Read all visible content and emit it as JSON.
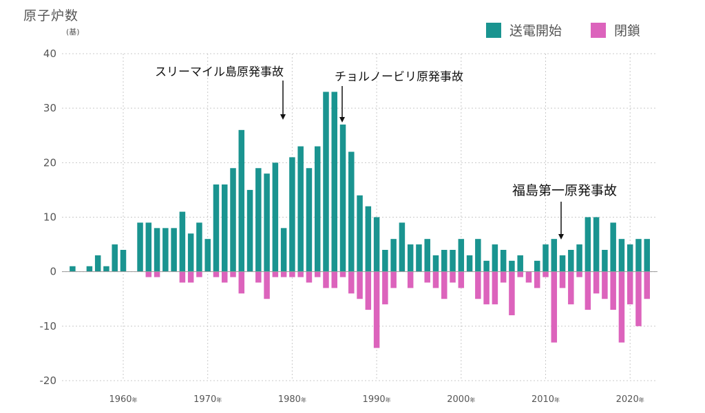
{
  "chart_data": {
    "type": "bar",
    "ylabel": "原子炉数",
    "yunit": "(基)",
    "ylim": [
      -20,
      40
    ],
    "yticks": [
      40,
      30,
      20,
      10,
      0,
      -10,
      -20
    ],
    "xticks": [
      {
        "year": 1960,
        "label": "1960",
        "suffix": "年"
      },
      {
        "year": 1970,
        "label": "1970",
        "suffix": "年"
      },
      {
        "year": 1980,
        "label": "1980",
        "suffix": "年"
      },
      {
        "year": 1990,
        "label": "1990",
        "suffix": "年"
      },
      {
        "year": 2000,
        "label": "2000",
        "suffix": "年"
      },
      {
        "year": 2010,
        "label": "2010",
        "suffix": "年"
      },
      {
        "year": 2020,
        "label": "2020",
        "suffix": "年"
      }
    ],
    "grid": true,
    "legend_position": "top-right",
    "x": [
      1954,
      1955,
      1956,
      1957,
      1958,
      1959,
      1960,
      1961,
      1962,
      1963,
      1964,
      1965,
      1966,
      1967,
      1968,
      1969,
      1970,
      1971,
      1972,
      1973,
      1974,
      1975,
      1976,
      1977,
      1978,
      1979,
      1980,
      1981,
      1982,
      1983,
      1984,
      1985,
      1986,
      1987,
      1988,
      1989,
      1990,
      1991,
      1992,
      1993,
      1994,
      1995,
      1996,
      1997,
      1998,
      1999,
      2000,
      2001,
      2002,
      2003,
      2004,
      2005,
      2006,
      2007,
      2008,
      2009,
      2010,
      2011,
      2012,
      2013,
      2014,
      2015,
      2016,
      2017,
      2018,
      2019,
      2020,
      2021,
      2022
    ],
    "series": [
      {
        "name": "送電開始",
        "color": "#1a9490",
        "values": [
          1,
          0,
          1,
          3,
          1,
          5,
          4,
          0,
          9,
          9,
          8,
          8,
          8,
          11,
          7,
          9,
          6,
          16,
          16,
          19,
          26,
          15,
          19,
          18,
          20,
          8,
          21,
          23,
          19,
          23,
          33,
          33,
          27,
          22,
          14,
          12,
          10,
          4,
          6,
          9,
          5,
          5,
          6,
          3,
          4,
          4,
          6,
          3,
          6,
          2,
          5,
          4,
          2,
          3,
          0,
          2,
          5,
          6,
          3,
          4,
          5,
          10,
          10,
          4,
          9,
          6,
          5,
          6,
          6
        ]
      },
      {
        "name": "閉鎖",
        "color": "#dc63bc",
        "values": [
          0,
          0,
          0,
          0,
          0,
          0,
          0,
          0,
          0,
          -1,
          -1,
          0,
          0,
          -2,
          -2,
          -1,
          0,
          -1,
          -2,
          -1,
          -4,
          0,
          -2,
          -5,
          -1,
          -1,
          -1,
          -1,
          -2,
          -1,
          -3,
          -3,
          -1,
          -4,
          -5,
          -7,
          -14,
          -6,
          -3,
          0,
          -3,
          0,
          -2,
          -3,
          -5,
          -2,
          -3,
          0,
          -5,
          -6,
          -6,
          -2,
          -8,
          -1,
          -2,
          -3,
          -1,
          -13,
          -3,
          -6,
          -1,
          -7,
          -4,
          -5,
          -7,
          -13,
          -6,
          -10,
          -5
        ]
      }
    ],
    "annotations": [
      {
        "text": "スリーマイル島原発事故",
        "year": 1979
      },
      {
        "text": "チョルノービリ原発事故",
        "year": 1986
      },
      {
        "text": "福島第一原発事故",
        "year": 2011
      }
    ]
  }
}
